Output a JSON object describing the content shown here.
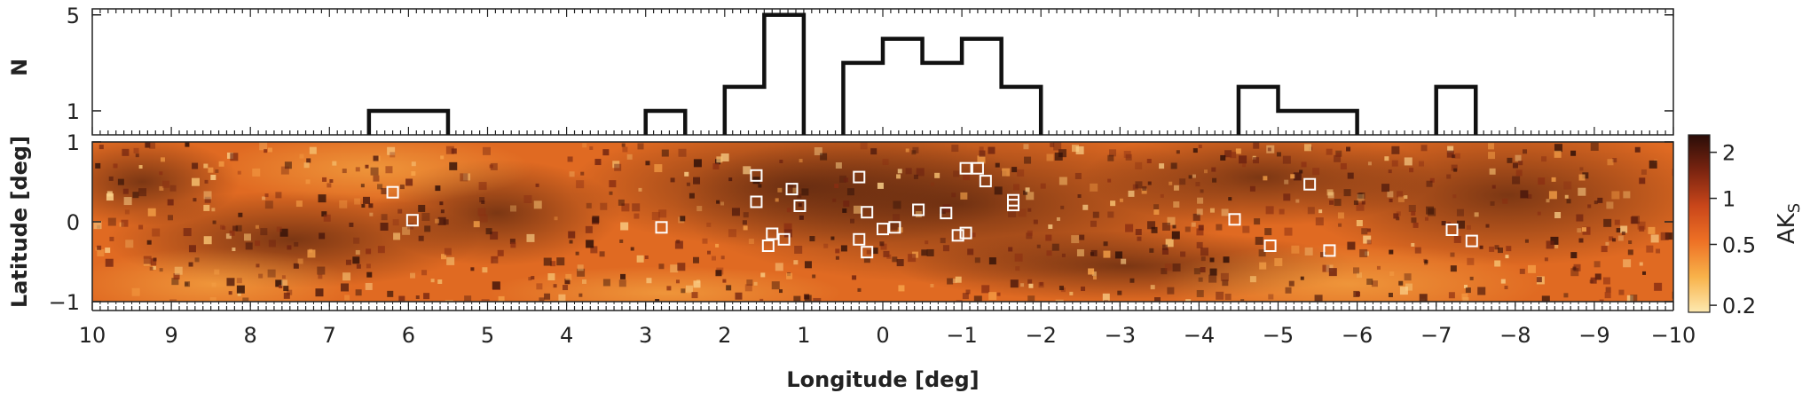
{
  "chart_data": [
    {
      "type": "histogram",
      "panel": "top",
      "ylabel": "N",
      "yticks": [
        1,
        5
      ],
      "ylim": [
        0,
        5.25
      ],
      "xlim": [
        10,
        -10
      ],
      "bin_edges": [
        10,
        9.5,
        9,
        8.5,
        8,
        7.5,
        7,
        6.5,
        6,
        5.5,
        5,
        4.5,
        4,
        3.5,
        3,
        2.5,
        2,
        1.5,
        1,
        0.5,
        0,
        -0.5,
        -1,
        -1.5,
        -2,
        -2.5,
        -3,
        -3.5,
        -4,
        -4.5,
        -5,
        -5.5,
        -6,
        -6.5,
        -7,
        -7.5,
        -8,
        -8.5,
        -9,
        -9.5,
        -10
      ],
      "counts": [
        0,
        0,
        0,
        0,
        0,
        0,
        0,
        1,
        1,
        0,
        0,
        0,
        0,
        0,
        1,
        0,
        2,
        5,
        0,
        3,
        4,
        3,
        4,
        2,
        0,
        0,
        0,
        0,
        0,
        2,
        1,
        1,
        0,
        0,
        2,
        0,
        0,
        0,
        0,
        0
      ]
    },
    {
      "type": "heatmap",
      "panel": "bottom",
      "xlabel": "Longitude [deg]",
      "ylabel": "Latitude [deg]",
      "xlim": [
        10,
        -10
      ],
      "ylim": [
        -1,
        1
      ],
      "xticks": [
        "10",
        "9",
        "8",
        "7",
        "6",
        "5",
        "4",
        "3",
        "2",
        "1",
        "0",
        "−1",
        "−2",
        "−3",
        "−4",
        "−5",
        "−6",
        "−7",
        "−8",
        "−9",
        "−10"
      ],
      "yticks": [
        "1",
        "0",
        "−1"
      ],
      "colorbar": {
        "label": "AK",
        "label_subscript": "S",
        "ticks": [
          "2",
          "1",
          "0.5",
          "0.2"
        ],
        "tick_values": [
          2,
          1,
          0.5,
          0.2
        ],
        "range": [
          0.18,
          2.6
        ],
        "scale": "log",
        "colors": [
          "#fde9b0",
          "#f8b24a",
          "#ee7125",
          "#c9461a",
          "#7a2410",
          "#2a0d08"
        ]
      },
      "markers": [
        {
          "l": 6.2,
          "b": 0.37
        },
        {
          "l": 5.95,
          "b": 0.02
        },
        {
          "l": 2.8,
          "b": -0.07
        },
        {
          "l": 1.6,
          "b": 0.58
        },
        {
          "l": 1.6,
          "b": 0.25
        },
        {
          "l": 1.15,
          "b": 0.41
        },
        {
          "l": 1.05,
          "b": 0.2
        },
        {
          "l": 1.4,
          "b": -0.15
        },
        {
          "l": 1.45,
          "b": -0.3
        },
        {
          "l": 1.25,
          "b": -0.22
        },
        {
          "l": 0.3,
          "b": 0.56
        },
        {
          "l": 0.2,
          "b": 0.12
        },
        {
          "l": 0.3,
          "b": -0.22
        },
        {
          "l": 0.0,
          "b": -0.09
        },
        {
          "l": -0.15,
          "b": -0.07
        },
        {
          "l": 0.2,
          "b": -0.38
        },
        {
          "l": -0.45,
          "b": 0.15
        },
        {
          "l": -0.8,
          "b": 0.11
        },
        {
          "l": -1.05,
          "b": 0.67
        },
        {
          "l": -1.2,
          "b": 0.67
        },
        {
          "l": -1.3,
          "b": 0.51
        },
        {
          "l": -0.95,
          "b": -0.17
        },
        {
          "l": -1.05,
          "b": -0.14
        },
        {
          "l": -1.65,
          "b": 0.27
        },
        {
          "l": -1.65,
          "b": 0.21
        },
        {
          "l": -4.45,
          "b": 0.03
        },
        {
          "l": -4.9,
          "b": -0.3
        },
        {
          "l": -5.4,
          "b": 0.47
        },
        {
          "l": -5.65,
          "b": -0.36
        },
        {
          "l": -7.2,
          "b": -0.1
        },
        {
          "l": -7.45,
          "b": -0.24
        }
      ]
    }
  ]
}
